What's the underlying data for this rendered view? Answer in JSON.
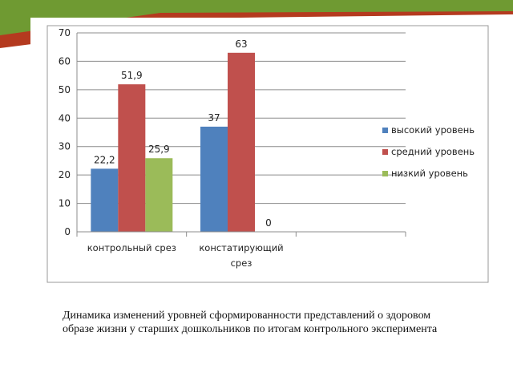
{
  "caption": "Динамика изменений уровней сформированности представлений о здоровом образе жизни у старших дошкольников по итогам контрольного эксперимента",
  "colors": {
    "decor_green": "#6f9a32",
    "decor_red": "#b43a1f",
    "decor_yellow": "#e2c23a"
  },
  "chart_data": {
    "type": "bar",
    "categories": [
      [
        "контрольный срез"
      ],
      [
        "констатирующий",
        "срез"
      ]
    ],
    "series": [
      {
        "name": "высокий уровень",
        "color": "#4f81bd",
        "values": [
          22.2,
          37
        ],
        "labels": [
          "22,2",
          "37"
        ]
      },
      {
        "name": "средний уровень",
        "color": "#c0504d",
        "values": [
          51.9,
          63
        ],
        "labels": [
          "51,9",
          "63"
        ]
      },
      {
        "name": "низкий уровень",
        "color": "#9bbb59",
        "values": [
          25.9,
          0
        ],
        "labels": [
          "25,9",
          "0"
        ]
      }
    ],
    "ylim": [
      0,
      70
    ],
    "yticks": [
      0,
      10,
      20,
      30,
      40,
      50,
      60,
      70
    ],
    "grid": true,
    "legend": "right"
  }
}
